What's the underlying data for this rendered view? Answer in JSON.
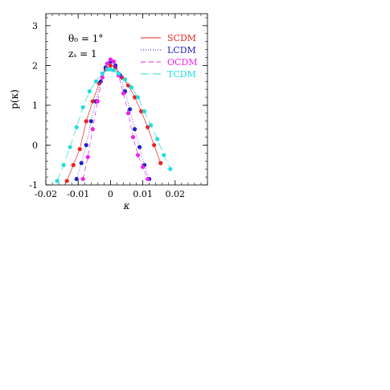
{
  "chart_data": {
    "type": "scatter",
    "xlabel": "κ",
    "ylabel": "p(κ)",
    "xlim": [
      -0.02,
      0.03
    ],
    "ylim": [
      -1,
      3.3
    ],
    "x_ticks": [
      -0.02,
      -0.01,
      0,
      0.01,
      0.02
    ],
    "x_tick_labels": [
      "-0.02",
      "-0.01",
      "0",
      "0.01",
      "0.02"
    ],
    "y_ticks": [
      -1,
      0,
      1,
      2,
      3
    ],
    "y_tick_labels": [
      "-1",
      "0",
      "1",
      "2",
      "3"
    ],
    "y_scale": "log10",
    "grid": false,
    "legend_position": "top-right",
    "annotations": [
      {
        "text": "θ₀ = 1°"
      },
      {
        "text": "zₛ = 1"
      }
    ],
    "series": [
      {
        "name": "SCDM",
        "color": "#ee2222",
        "line_style": "solid",
        "x": [
          -0.0135,
          -0.0115,
          -0.0095,
          -0.0075,
          -0.0055,
          -0.0035,
          -0.0015,
          0,
          0.0015,
          0.0035,
          0.0055,
          0.0075,
          0.0095,
          0.0115,
          0.0135,
          0.0155
        ],
        "y": [
          -0.9,
          -0.5,
          -0.1,
          0.6,
          1.1,
          1.55,
          1.9,
          2.0,
          1.95,
          1.7,
          1.5,
          1.2,
          0.85,
          0.45,
          0,
          -0.45
        ]
      },
      {
        "name": "LCDM",
        "color": "#2222cc",
        "line_style": "dotted",
        "x": [
          -0.0105,
          -0.009,
          -0.0075,
          -0.006,
          -0.0045,
          -0.003,
          -0.0015,
          0,
          0.0015,
          0.003,
          0.0045,
          0.006,
          0.0075,
          0.009,
          0.0105,
          0.012
        ],
        "y": [
          -0.85,
          -0.45,
          0.0,
          0.6,
          1.1,
          1.6,
          1.95,
          2.1,
          2.0,
          1.75,
          1.35,
          0.9,
          0.4,
          -0.05,
          -0.5,
          -0.85
        ]
      },
      {
        "name": "OCDM",
        "color": "#ee22ee",
        "line_style": "dashed",
        "x": [
          -0.0085,
          -0.007,
          -0.0055,
          -0.004,
          -0.0025,
          -0.001,
          0,
          0.001,
          0.0025,
          0.004,
          0.0055,
          0.007,
          0.0085,
          0.01,
          0.0115
        ],
        "y": [
          -0.85,
          -0.3,
          0.4,
          1.1,
          1.7,
          2.05,
          2.15,
          2.1,
          1.75,
          1.3,
          0.8,
          0.2,
          -0.25,
          -0.55,
          -0.85
        ]
      },
      {
        "name": "TCDM",
        "color": "#22dddd",
        "line_style": "long-dash",
        "x": [
          -0.0165,
          -0.0145,
          -0.0125,
          -0.0105,
          -0.0085,
          -0.0065,
          -0.0045,
          -0.0025,
          -0.001,
          0,
          0.001,
          0.0025,
          0.0045,
          0.0065,
          0.0085,
          0.0105,
          0.0125,
          0.0145,
          0.0165,
          0.0185
        ],
        "y": [
          -0.9,
          -0.5,
          -0.05,
          0.45,
          0.95,
          1.35,
          1.6,
          1.8,
          1.9,
          1.9,
          1.88,
          1.8,
          1.65,
          1.45,
          1.2,
          0.85,
          0.5,
          0.15,
          -0.25,
          -0.6
        ]
      }
    ]
  }
}
